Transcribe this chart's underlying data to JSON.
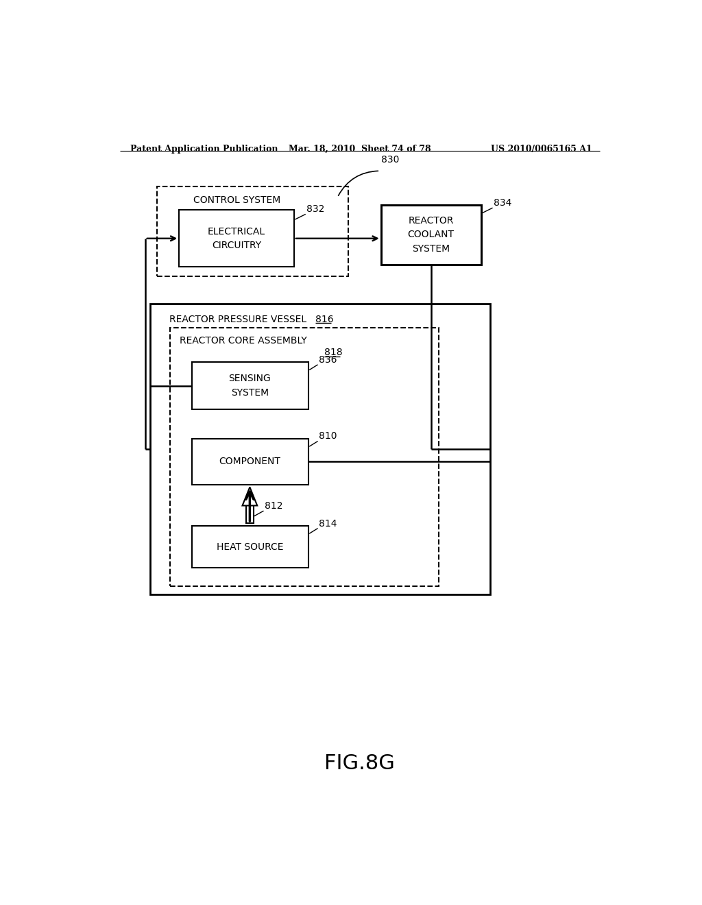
{
  "bg_color": "#ffffff",
  "header_left": "Patent Application Publication",
  "header_mid": "Mar. 18, 2010  Sheet 74 of 78",
  "header_right": "US 2010/0065165 A1",
  "figure_label": "FIG.8G",
  "label_830": "830",
  "label_832": "832",
  "label_834": "834",
  "label_816": "816",
  "label_818": "818",
  "label_836": "836",
  "label_810": "810",
  "label_812": "812",
  "label_814": "814"
}
